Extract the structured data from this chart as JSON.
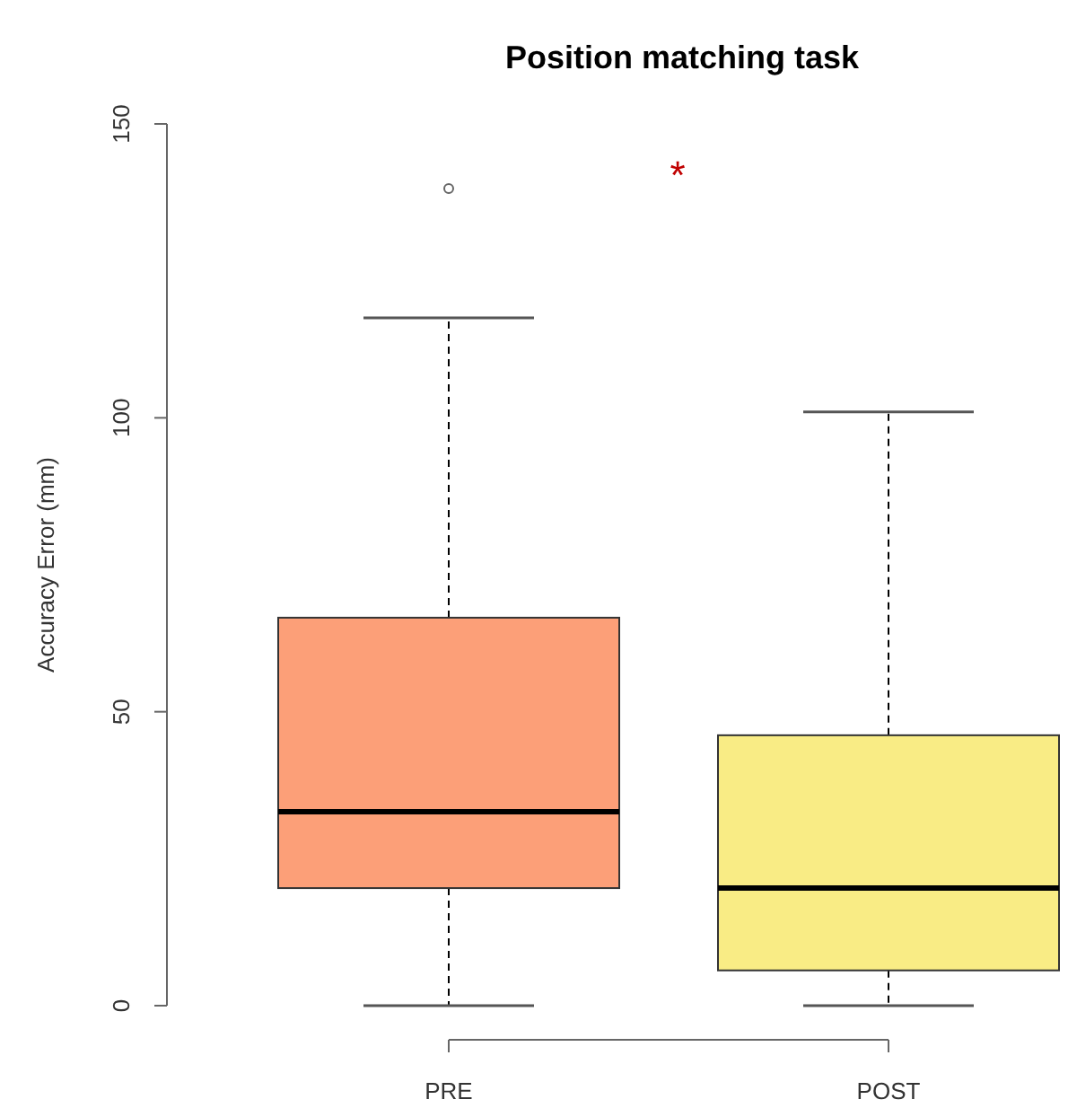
{
  "chart_data": {
    "type": "box",
    "title": "Position matching task",
    "ylabel": "Accuracy Error (mm)",
    "categories": [
      "PRE",
      "POST"
    ],
    "colors": [
      "#fc9f78",
      "#f9ec85"
    ],
    "boxes": [
      {
        "low": 0,
        "q1": 20,
        "median": 33,
        "q3": 66,
        "high": 117,
        "outliers": [
          139
        ]
      },
      {
        "low": 0,
        "q1": 6,
        "median": 20,
        "q3": 46,
        "high": 101
      }
    ],
    "ylim": [
      0,
      150
    ],
    "yticks": [
      0,
      50,
      100,
      150
    ],
    "grid": false,
    "annotations": [
      "*"
    ]
  }
}
